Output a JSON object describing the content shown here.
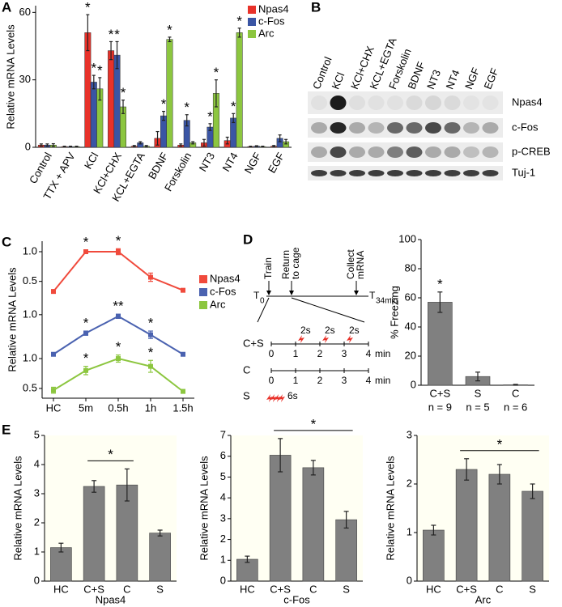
{
  "panel_labels": [
    "A",
    "B",
    "C",
    "D",
    "E"
  ],
  "chart_data": [
    {
      "type": "bar",
      "ylabel": "Relative mRNA Levels",
      "categories": [
        "Control",
        "TTX + APV",
        "KCl",
        "KCl+CHX",
        "KCL+EGTA",
        "BDNF",
        "Forskolin",
        "NT3",
        "NT4",
        "NGF",
        "EGF"
      ],
      "ylim": [
        0,
        63
      ],
      "yticks": [
        0,
        30,
        60
      ],
      "legend": "upper right",
      "series": [
        {
          "name": "Npas4",
          "color": "#e8322a",
          "values": [
            1,
            0.3,
            51,
            43,
            0.5,
            4,
            1,
            2,
            3,
            0.3,
            0.5
          ],
          "errors": [
            0.5,
            0.2,
            8,
            4,
            0.3,
            3,
            0.5,
            1.5,
            1.5,
            0.2,
            0.3
          ],
          "markers": [
            null,
            null,
            "*",
            "*",
            null,
            null,
            null,
            null,
            null,
            null,
            null
          ]
        },
        {
          "name": "c-Fos",
          "color": "#3a55a4",
          "values": [
            1,
            0.3,
            29,
            41,
            2,
            14,
            12,
            9,
            13,
            0.5,
            4
          ],
          "errors": [
            0.5,
            0.2,
            3,
            6,
            0.5,
            2,
            2.5,
            1.5,
            2,
            0.2,
            1.5
          ],
          "markers": [
            null,
            null,
            "*",
            "*",
            null,
            "*",
            "*",
            "*",
            "*",
            null,
            null
          ]
        },
        {
          "name": "Arc",
          "color": "#8cc63f",
          "values": [
            1,
            0.3,
            26,
            18,
            0.5,
            48,
            2,
            24,
            51,
            0.3,
            2.5
          ],
          "errors": [
            0.6,
            0.2,
            5,
            3,
            0.3,
            1,
            0.5,
            6,
            2,
            0.2,
            1
          ],
          "markers": [
            null,
            null,
            "*",
            "*",
            null,
            "*",
            null,
            "*",
            "*",
            null,
            null
          ]
        }
      ]
    },
    {
      "type": "line",
      "ylabel": "Relative mRNA Levels",
      "categories": [
        "HC",
        "5m",
        "0.5h",
        "1h",
        "1.5h"
      ],
      "legend": "center right",
      "series": [
        {
          "name": "Npas4",
          "color": "#f04a3c",
          "values": [
            0.33,
            1.0,
            1.0,
            0.57,
            0.35
          ],
          "errors": [
            0.03,
            0.03,
            0.05,
            0.07,
            0.02
          ],
          "markers": [
            null,
            "*",
            "*",
            null,
            null
          ],
          "ylim": [
            0.25,
            1.15
          ],
          "yticks": [
            0.5,
            {
              "value": 1,
              "label": "1.0"
            }
          ]
        },
        {
          "name": "c-Fos",
          "color": "#4a62b0",
          "values": [
            0.25,
            0.65,
            0.97,
            0.62,
            0.25
          ],
          "errors": [
            0.02,
            0.04,
            0.04,
            0.07,
            0.02
          ],
          "markers": [
            null,
            "*",
            "**",
            "*",
            null
          ],
          "ylim": [
            0.2,
            1.12
          ],
          "yticks": [
            {
              "value": 1,
              "label": "1.0"
            }
          ]
        },
        {
          "name": "Arc",
          "color": "#8cc63f",
          "values": [
            0.47,
            0.8,
            1.0,
            0.87,
            0.45
          ],
          "errors": [
            0.05,
            0.07,
            0.06,
            0.1,
            0.03
          ],
          "markers": [
            null,
            "*",
            "*",
            "*",
            null
          ],
          "ylim": [
            0.35,
            1.15
          ],
          "yticks": [
            0.5,
            {
              "value": 1,
              "label": "1.0"
            }
          ]
        }
      ]
    },
    {
      "type": "bar",
      "ylabel": "% Freezing",
      "categories": [
        "C+S",
        "S",
        "C"
      ],
      "values": [
        57,
        6,
        0.3
      ],
      "errors": [
        7,
        3,
        0.3
      ],
      "markers": [
        "*",
        null,
        null
      ],
      "n_labels": [
        "n = 9",
        "n = 5",
        "n = 6"
      ],
      "color": "#808080",
      "ylim": [
        0,
        100
      ],
      "yticks": [
        0,
        20,
        40,
        60,
        80,
        100
      ]
    },
    {
      "type": "bar",
      "xlabel": "Npas4",
      "ylabel": "Relative mRNA Levels",
      "categories": [
        "HC",
        "C+S",
        "C",
        "S"
      ],
      "values": [
        1.15,
        3.25,
        3.3,
        1.65
      ],
      "errors": [
        0.15,
        0.2,
        0.55,
        0.1
      ],
      "color": "#808080",
      "ylim": [
        0,
        5
      ],
      "yticks": [
        0,
        1,
        2,
        3,
        4,
        5
      ],
      "bracket": {
        "from": 1,
        "to": 2,
        "label": "*"
      }
    },
    {
      "type": "bar",
      "xlabel": "c-Fos",
      "ylabel": "Relative mRNA Levels",
      "categories": [
        "HC",
        "C+S",
        "C",
        "S"
      ],
      "values": [
        1.05,
        6.05,
        5.45,
        2.95
      ],
      "errors": [
        0.15,
        0.8,
        0.35,
        0.4
      ],
      "color": "#808080",
      "ylim": [
        0,
        7
      ],
      "yticks": [
        0,
        1,
        2,
        3,
        4,
        5,
        6,
        7
      ],
      "bracket": {
        "from": 1,
        "to": 3,
        "label": "*"
      }
    },
    {
      "type": "bar",
      "xlabel": "Arc",
      "ylabel": "Relative mRNA Levels",
      "categories": [
        "HC",
        "C+S",
        "C",
        "S"
      ],
      "values": [
        1.05,
        2.3,
        2.2,
        1.85
      ],
      "errors": [
        0.1,
        0.22,
        0.2,
        0.15
      ],
      "color": "#808080",
      "ylim": [
        0,
        3
      ],
      "yticks": [
        0,
        1,
        2,
        3
      ],
      "bracket": {
        "from": 1,
        "to": 3,
        "label": "*"
      }
    }
  ],
  "blot": {
    "lanes": [
      "Control",
      "KCl",
      "KCl+CHX",
      "KCL+EGTA",
      "Forskolin",
      "BDNF",
      "NT3",
      "NT4",
      "NGF",
      "EGF"
    ],
    "rows": [
      "Npas4",
      "c-Fos",
      "p-CREB",
      "Tuj-1"
    ]
  },
  "diagram": {
    "start": {
      "label": "T",
      "sub": "0"
    },
    "end": {
      "label": "T",
      "sub": "34min"
    },
    "events": [
      [
        "Train"
      ],
      [
        "Return",
        "to cage"
      ],
      [
        "Collect",
        "mRNA"
      ]
    ],
    "conditions": [
      "C+S",
      "C",
      "S"
    ],
    "ticks": [
      0,
      1,
      2,
      3,
      4
    ],
    "unit": "min",
    "shock": "2s",
    "long_shock": "6s"
  }
}
